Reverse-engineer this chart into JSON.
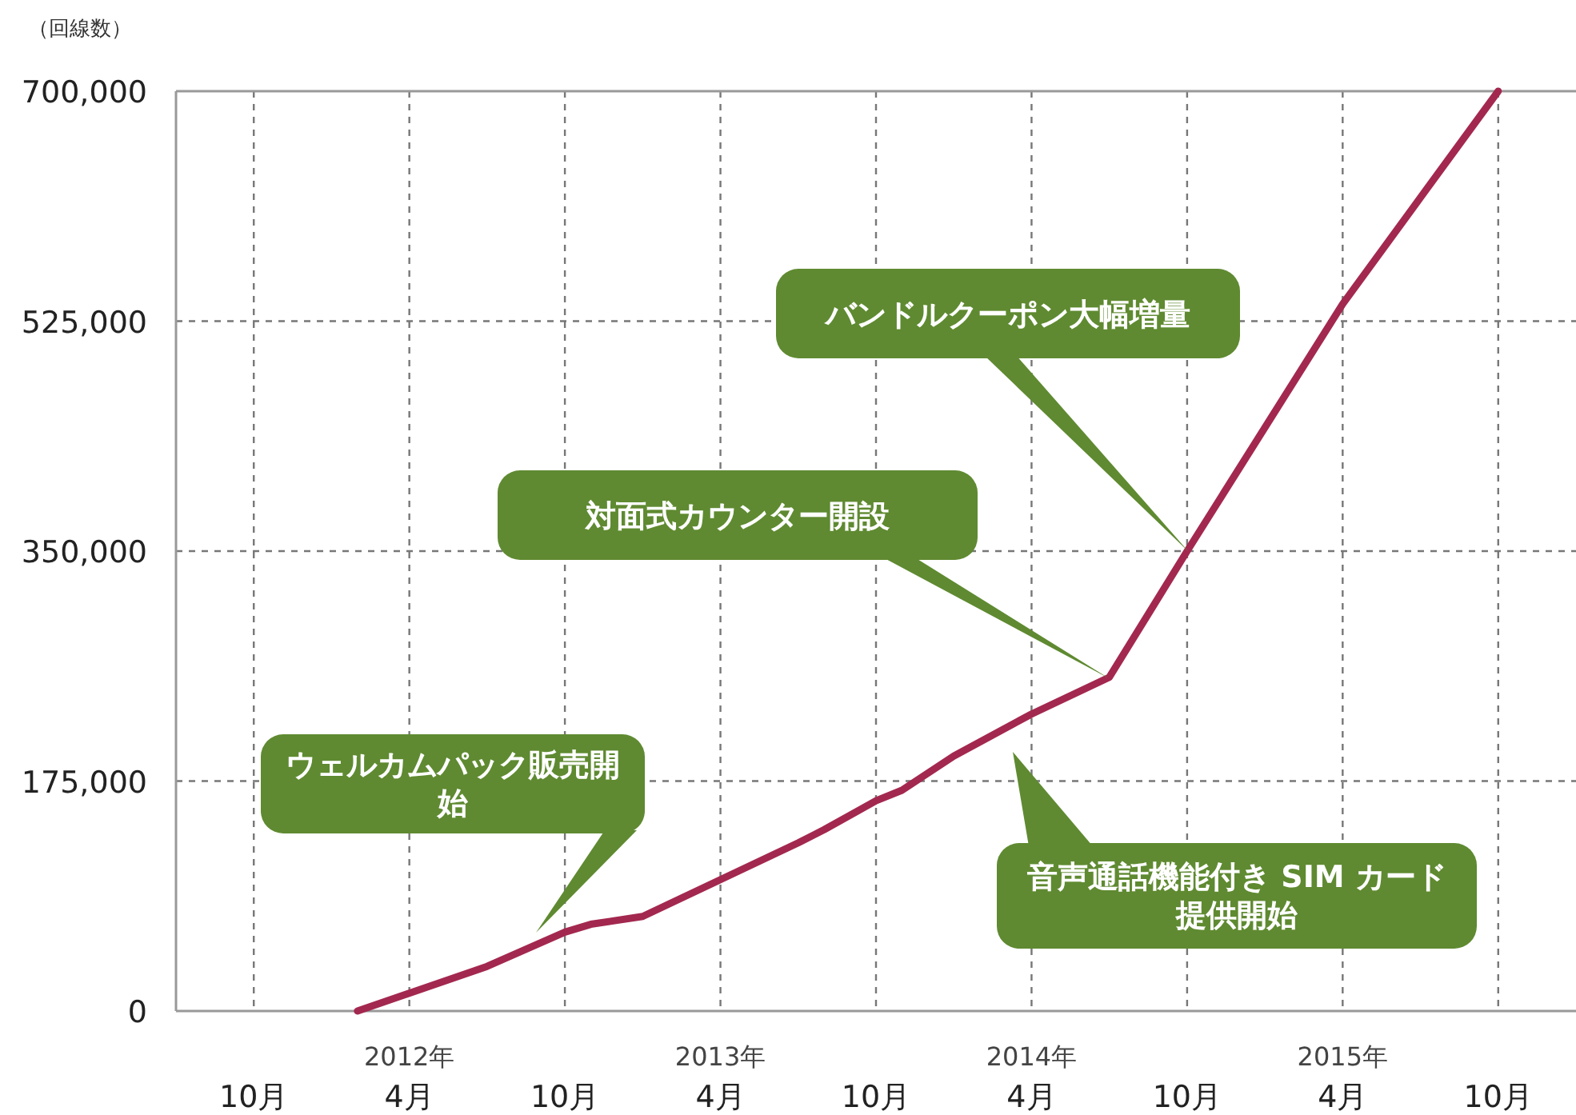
{
  "chart_data": {
    "type": "line",
    "ylabel": "（回線数）",
    "x": [
      "2012-02",
      "2012-07",
      "2012-10",
      "2012-11",
      "2013-01",
      "2013-04",
      "2013-07",
      "2013-08",
      "2013-10",
      "2013-11",
      "2014-01",
      "2014-04",
      "2014-07",
      "2014-10",
      "2015-04",
      "2015-10"
    ],
    "series": [
      {
        "color": "#a3284f",
        "values": [
          0,
          34000,
          60000,
          66000,
          72000,
          100000,
          128000,
          138000,
          160000,
          168000,
          194000,
          226000,
          254000,
          350000,
          538000,
          700000
        ]
      }
    ],
    "xlim": [
      "2011-07",
      "2016-01"
    ],
    "xticks": [
      {
        "value": "2011-10",
        "label": "10月"
      },
      {
        "value": "2012-04",
        "label": "2012年\n4月"
      },
      {
        "value": "2012-10",
        "label": "10月"
      },
      {
        "value": "2013-04",
        "label": "2013年\n4月"
      },
      {
        "value": "2013-10",
        "label": "10月"
      },
      {
        "value": "2014-04",
        "label": "2014年\n4月"
      },
      {
        "value": "2014-10",
        "label": "10月"
      },
      {
        "value": "2015-04",
        "label": "2015年\n4月"
      },
      {
        "value": "2015-10",
        "label": "10月"
      }
    ],
    "ylim": [
      0,
      700000
    ],
    "yticks": [
      0,
      {
        "value": 175000,
        "label": "175,000"
      },
      {
        "value": 350000,
        "label": "350,000"
      },
      {
        "value": 525000,
        "label": "525,000"
      },
      {
        "value": 700000,
        "label": "700,000"
      }
    ],
    "grid": true,
    "line_style": "solid",
    "marker": "none",
    "annotations": [
      "ウェルカムパック販売開始",
      "対面式カウンター開設",
      "バンドルクーポン大幅増量",
      "音声通話機能付き SIM カード提供開始"
    ]
  }
}
